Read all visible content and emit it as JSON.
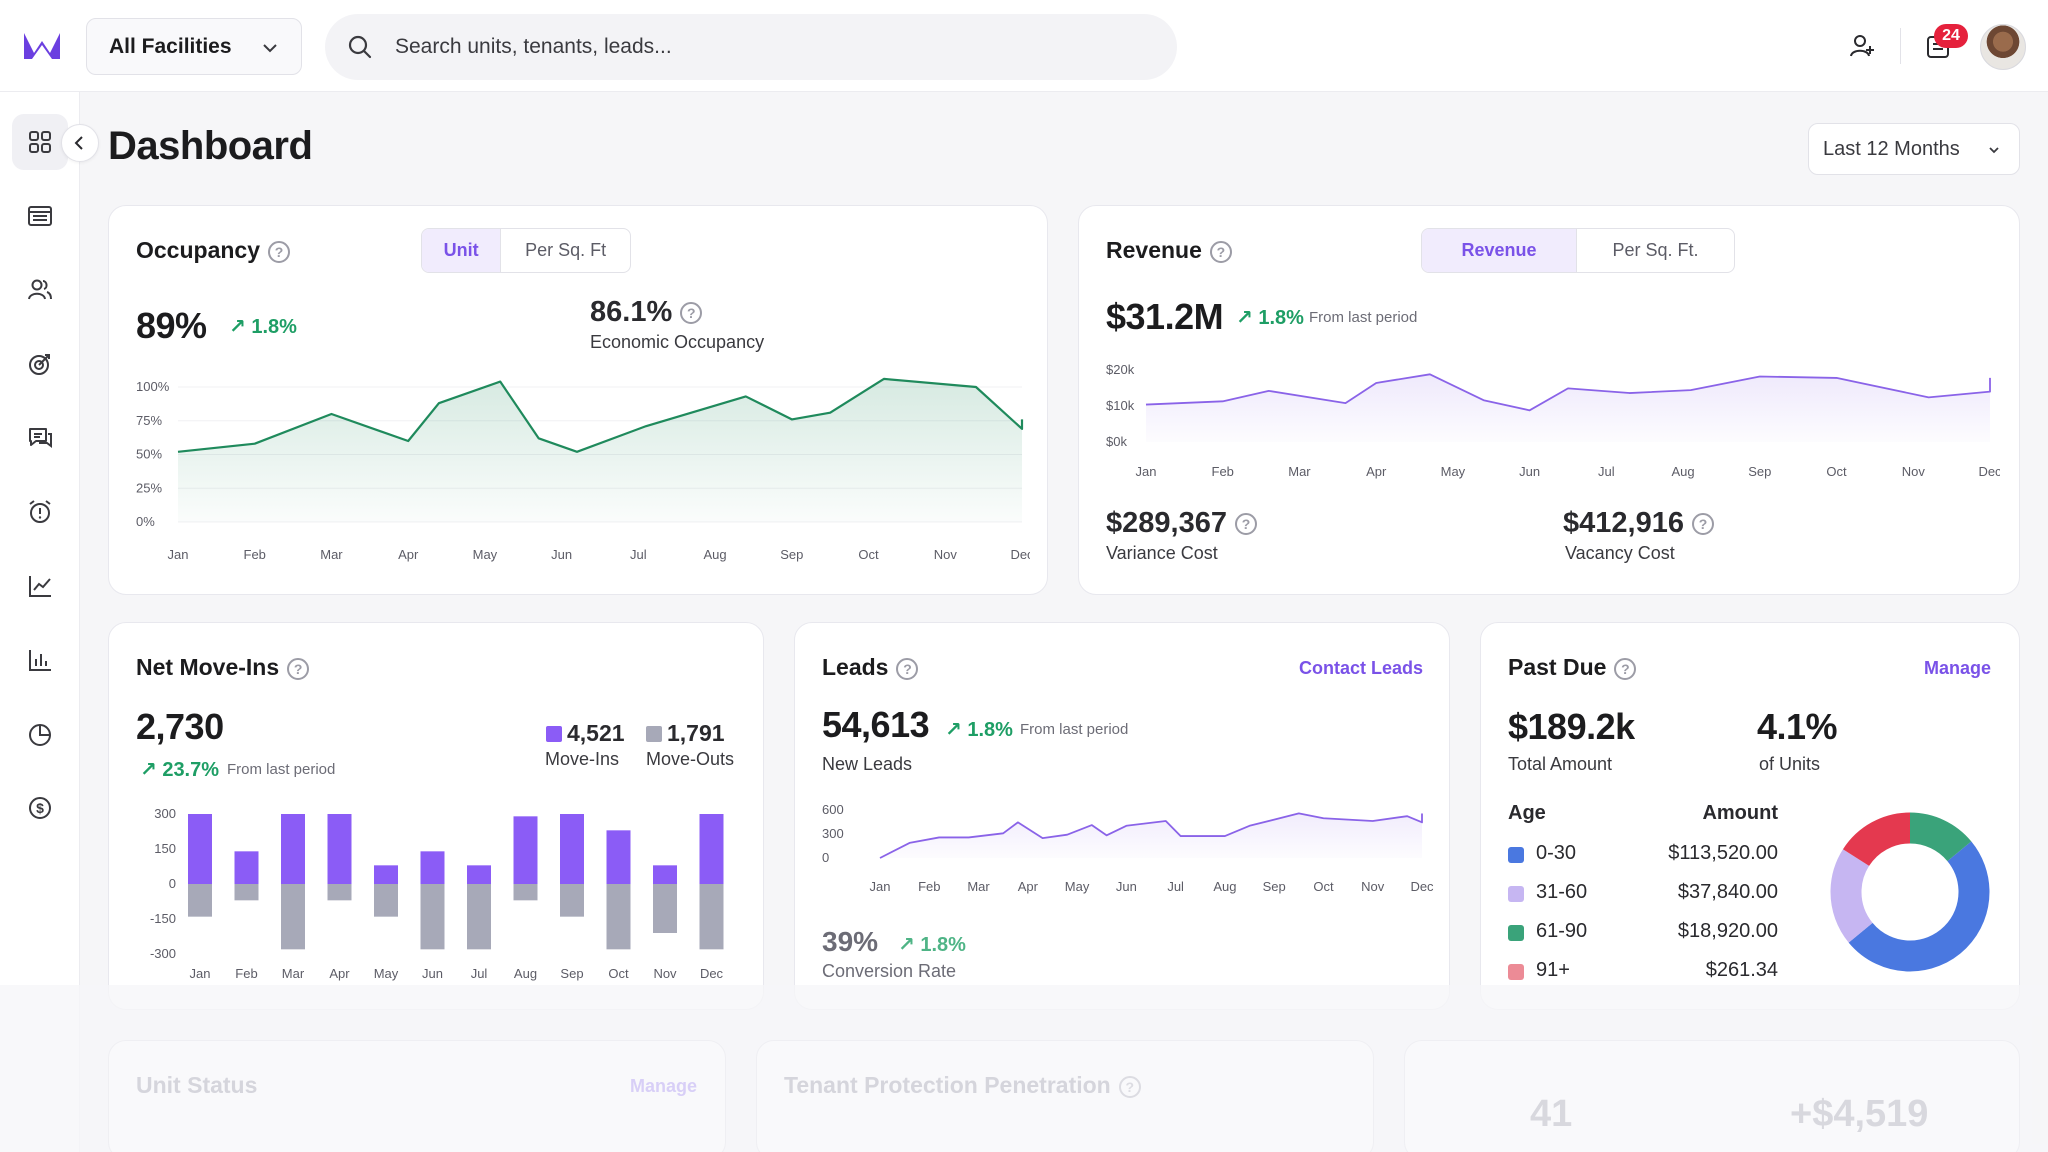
{
  "topbar": {
    "facility_label": "All Facilities",
    "search_placeholder": "Search units, tenants, leads...",
    "notification_count": "24"
  },
  "header": {
    "title": "Dashboard",
    "range_label": "Last 12 Months"
  },
  "sidebar": {
    "items": [
      "grid-icon",
      "storage-icon",
      "users-icon",
      "target-icon",
      "chat-icon",
      "alarm-icon",
      "line-chart-icon",
      "bar-chart-icon",
      "pie-chart-icon",
      "dollar-icon"
    ]
  },
  "occupancy": {
    "title": "Occupancy",
    "tabs": [
      "Unit",
      "Per Sq. Ft"
    ],
    "value": "89%",
    "change": "↗ 1.8%",
    "economic_value": "86.1%",
    "economic_label": "Economic Occupancy"
  },
  "revenue": {
    "title": "Revenue",
    "tabs": [
      "Revenue",
      "Per Sq. Ft."
    ],
    "value": "$31.2M",
    "change": "↗ 1.8%",
    "from_label": "From last period",
    "variance_value": "$289,367",
    "variance_label": "Variance Cost",
    "vacancy_value": "$412,916",
    "vacancy_label": "Vacancy Cost"
  },
  "net_move_ins": {
    "title": "Net Move-Ins",
    "value": "2,730",
    "change": "↗ 23.7%",
    "from_label": "From last period",
    "move_ins_value": "4,521",
    "move_ins_label": "Move-Ins",
    "move_outs_value": "1,791",
    "move_outs_label": "Move-Outs"
  },
  "leads": {
    "title": "Leads",
    "link": "Contact Leads",
    "value": "54,613",
    "change": "↗ 1.8%",
    "from_label": "From last period",
    "value_label": "New Leads",
    "conversion_value": "39%",
    "conversion_change": "↗ 1.8%",
    "conversion_label": "Conversion Rate"
  },
  "past_due": {
    "title": "Past Due",
    "link": "Manage",
    "total_value": "$189.2k",
    "total_label": "Total Amount",
    "units_value": "4.1%",
    "units_label": "of Units",
    "age_header": "Age",
    "amount_header": "Amount",
    "rows": [
      {
        "age": "0-30",
        "amount": "$113,520.00",
        "color": "#4a78e0"
      },
      {
        "age": "31-60",
        "amount": "$37,840.00",
        "color": "#c6b6f2"
      },
      {
        "age": "61-90",
        "amount": "$18,920.00",
        "color": "#3aa37a"
      },
      {
        "age": "91+",
        "amount": "$261.34",
        "color": "#ec8b96"
      }
    ]
  },
  "faded": {
    "unit_status_title": "Unit Status",
    "unit_status_link": "Manage",
    "tpp_title": "Tenant Protection Penetration",
    "stat_a": "41",
    "stat_b": "+$4,519"
  },
  "chart_data": [
    {
      "type": "area",
      "title": "Occupancy",
      "categories": [
        "Jan",
        "Feb",
        "Mar",
        "Apr",
        "May",
        "Jun",
        "Jul",
        "Aug",
        "Sep",
        "Oct",
        "Nov",
        "Dec"
      ],
      "x": [
        0,
        1,
        2,
        3,
        3.4,
        4.2,
        4.7,
        5.2,
        6.1,
        7.4,
        8.0,
        8.5,
        9.2,
        10.4,
        11.2,
        11.7
      ],
      "values": [
        52,
        58,
        80,
        60,
        88,
        104,
        62,
        52,
        71,
        93,
        76,
        81,
        106,
        100,
        69,
        76
      ],
      "ylim": [
        0,
        100
      ],
      "yticks": [
        "100%",
        "75%",
        "50%",
        "25%",
        "0%"
      ],
      "color": "#1f8a5c"
    },
    {
      "type": "area",
      "title": "Revenue",
      "categories": [
        "Jan",
        "Feb",
        "Mar",
        "Apr",
        "May",
        "Jun",
        "Jul",
        "Aug",
        "Sep",
        "Oct",
        "Nov",
        "Dec"
      ],
      "x": [
        0,
        1,
        1.6,
        2.6,
        3.0,
        3.7,
        4.4,
        5.0,
        5.5,
        6.3,
        7.1,
        8.0,
        9.0,
        10.2,
        11.0,
        11.6
      ],
      "values": [
        10.4,
        11.3,
        14.2,
        10.8,
        16.4,
        18.8,
        11.6,
        8.8,
        14.9,
        13.6,
        14.4,
        18.2,
        17.8,
        12.4,
        14.0,
        17.8
      ],
      "ylim": [
        0,
        20
      ],
      "yticks": [
        "$20k",
        "$10k",
        "$0k"
      ],
      "color": "#8a63e8"
    },
    {
      "type": "bar",
      "title": "Net Move-Ins",
      "categories": [
        "Jan",
        "Feb",
        "Mar",
        "Apr",
        "May",
        "Jun",
        "Jul",
        "Aug",
        "Sep",
        "Oct",
        "Nov",
        "Dec"
      ],
      "series": [
        {
          "name": "Move-Ins",
          "values": [
            300,
            140,
            300,
            300,
            80,
            140,
            80,
            290,
            300,
            230,
            80,
            300
          ],
          "color": "#8b5cf6"
        },
        {
          "name": "Move-Outs",
          "values": [
            -140,
            -70,
            -280,
            -70,
            -140,
            -280,
            -280,
            -70,
            -140,
            -280,
            -210,
            -280
          ],
          "color": "#a7a9b8"
        }
      ],
      "ylim": [
        -300,
        300
      ],
      "yticks": [
        "300",
        "150",
        "0",
        "-150",
        "-300"
      ]
    },
    {
      "type": "area",
      "title": "Leads",
      "categories": [
        "Jan",
        "Feb",
        "Mar",
        "Apr",
        "May",
        "Jun",
        "Jul",
        "Aug",
        "Sep",
        "Oct",
        "Nov",
        "Dec"
      ],
      "x": [
        0,
        0.6,
        1.2,
        1.8,
        2.5,
        2.8,
        3.3,
        3.8,
        4.3,
        4.6,
        5.0,
        5.8,
        6.1,
        7.0,
        7.5,
        8.5,
        9.0,
        10.0,
        10.7,
        11.3,
        11.5,
        12.0
      ],
      "values": [
        0,
        220,
        300,
        300,
        360,
        520,
        290,
        340,
        480,
        330,
        470,
        540,
        320,
        320,
        470,
        650,
        580,
        540,
        610,
        520,
        640,
        620
      ],
      "ylim": [
        0,
        700
      ],
      "yticks": [
        "600",
        "300",
        "0"
      ],
      "color": "#8a63e8"
    },
    {
      "type": "pie",
      "title": "Past Due",
      "labels": [
        "0-30",
        "31-60",
        "61-90",
        "91+"
      ],
      "values": [
        50,
        20,
        14,
        16
      ],
      "colors": [
        "#4a78e0",
        "#c6b6f2",
        "#3aa37a",
        "#e4394f"
      ]
    }
  ]
}
